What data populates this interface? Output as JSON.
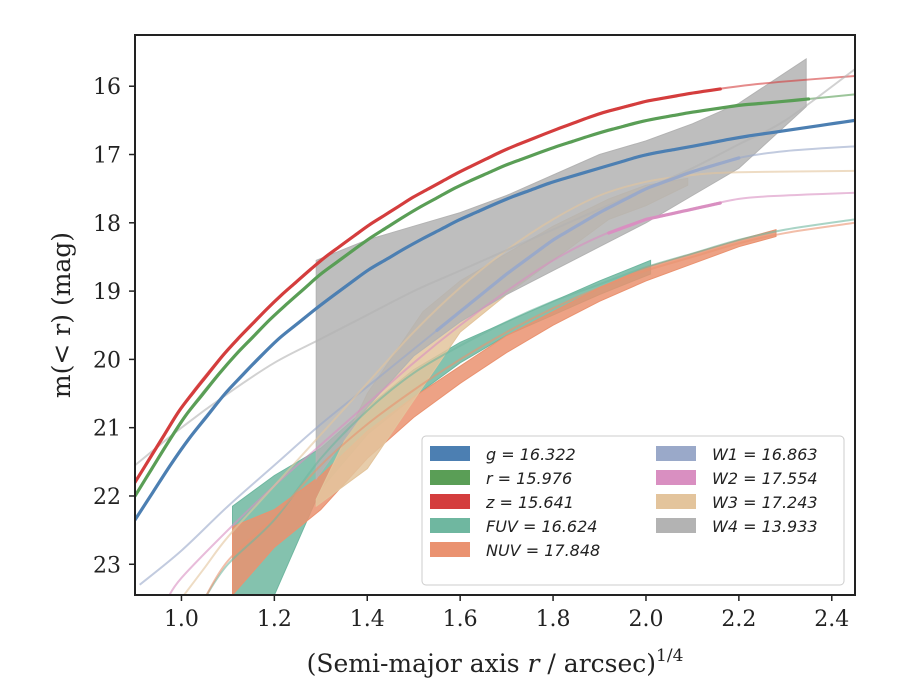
{
  "chart_data": {
    "type": "line",
    "xlabel_main": "(Semi-major axis ",
    "xlabel_var": "r",
    "xlabel_tail": " / arcsec)",
    "xlabel_exp": "1/4",
    "ylabel_main": "m(< r) (mag)",
    "xlim": [
      0.9,
      2.45
    ],
    "ylim": [
      23.45,
      15.25
    ],
    "y_inverted": true,
    "x_ticks": [
      1.0,
      1.2,
      1.4,
      1.6,
      1.8,
      2.0,
      2.2,
      2.4
    ],
    "x_tick_labels": [
      "1.0",
      "1.2",
      "1.4",
      "1.6",
      "1.8",
      "2.0",
      "2.2",
      "2.4"
    ],
    "y_ticks": [
      16,
      17,
      18,
      19,
      20,
      21,
      22,
      23
    ],
    "y_tick_labels": [
      "16",
      "17",
      "18",
      "19",
      "20",
      "21",
      "22",
      "23"
    ],
    "legend_position": "lower-right",
    "series": [
      {
        "name": "g",
        "value": "16.322",
        "legend_label": "g = 16.322",
        "color": "#4c7fb2",
        "model": [
          [
            0.9,
            22.35
          ],
          [
            1.0,
            21.3
          ],
          [
            1.1,
            20.45
          ],
          [
            1.2,
            19.75
          ],
          [
            1.3,
            19.2
          ],
          [
            1.4,
            18.7
          ],
          [
            1.5,
            18.3
          ],
          [
            1.6,
            17.95
          ],
          [
            1.7,
            17.65
          ],
          [
            1.8,
            17.4
          ],
          [
            1.9,
            17.2
          ],
          [
            2.0,
            17.0
          ],
          [
            2.1,
            16.88
          ],
          [
            2.2,
            16.75
          ],
          [
            2.3,
            16.65
          ],
          [
            2.45,
            16.5
          ]
        ],
        "measured": {
          "x_min": 0.9,
          "x_max": 2.45
        }
      },
      {
        "name": "r",
        "value": "15.976",
        "legend_label": "r = 15.976",
        "color": "#5a9e56",
        "model": [
          [
            0.9,
            22.0
          ],
          [
            1.0,
            20.9
          ],
          [
            1.1,
            20.05
          ],
          [
            1.2,
            19.35
          ],
          [
            1.3,
            18.75
          ],
          [
            1.4,
            18.25
          ],
          [
            1.5,
            17.82
          ],
          [
            1.6,
            17.45
          ],
          [
            1.7,
            17.15
          ],
          [
            1.8,
            16.9
          ],
          [
            1.9,
            16.68
          ],
          [
            2.0,
            16.5
          ],
          [
            2.1,
            16.38
          ],
          [
            2.2,
            16.28
          ],
          [
            2.3,
            16.22
          ],
          [
            2.45,
            16.12
          ]
        ],
        "measured": {
          "x_min": 0.9,
          "x_max": 2.35
        }
      },
      {
        "name": "z",
        "value": "15.641",
        "legend_label": "z = 15.641",
        "color": "#d43d3d",
        "model": [
          [
            0.9,
            21.8
          ],
          [
            1.0,
            20.7
          ],
          [
            1.1,
            19.85
          ],
          [
            1.2,
            19.15
          ],
          [
            1.3,
            18.55
          ],
          [
            1.4,
            18.05
          ],
          [
            1.5,
            17.62
          ],
          [
            1.6,
            17.25
          ],
          [
            1.7,
            16.92
          ],
          [
            1.8,
            16.65
          ],
          [
            1.9,
            16.4
          ],
          [
            2.0,
            16.22
          ],
          [
            2.1,
            16.1
          ],
          [
            2.2,
            16.0
          ],
          [
            2.3,
            15.93
          ],
          [
            2.45,
            15.85
          ]
        ],
        "measured": {
          "x_min": 0.9,
          "x_max": 2.16
        }
      },
      {
        "name": "FUV",
        "value": "16.624",
        "legend_label": "FUV = 16.624",
        "color": "#6fb7a0",
        "model": [
          [
            1.05,
            23.5
          ],
          [
            1.1,
            23.0
          ],
          [
            1.2,
            22.35
          ],
          [
            1.3,
            21.45
          ],
          [
            1.4,
            20.75
          ],
          [
            1.5,
            20.2
          ],
          [
            1.6,
            19.8
          ],
          [
            1.7,
            19.45
          ],
          [
            1.8,
            19.15
          ],
          [
            1.9,
            18.9
          ],
          [
            2.0,
            18.65
          ],
          [
            2.1,
            18.45
          ],
          [
            2.2,
            18.25
          ],
          [
            2.3,
            18.1
          ],
          [
            2.45,
            17.95
          ]
        ],
        "band": {
          "x": [
            1.11,
            1.2,
            1.3,
            1.4,
            1.5,
            1.6,
            1.7,
            1.8,
            1.9,
            2.01
          ],
          "lower": [
            22.15,
            21.7,
            21.3,
            20.7,
            20.15,
            19.75,
            19.45,
            19.15,
            18.85,
            18.55
          ],
          "upper": [
            23.45,
            23.45,
            21.9,
            21.1,
            20.55,
            20.05,
            19.65,
            19.35,
            19.05,
            18.75
          ]
        }
      },
      {
        "name": "NUV",
        "value": "17.848",
        "legend_label": "NUV = 17.848",
        "color": "#ea9270",
        "model": [
          [
            1.05,
            23.5
          ],
          [
            1.1,
            22.95
          ],
          [
            1.2,
            22.3
          ],
          [
            1.3,
            21.55
          ],
          [
            1.4,
            20.95
          ],
          [
            1.5,
            20.45
          ],
          [
            1.6,
            20.0
          ],
          [
            1.7,
            19.6
          ],
          [
            1.8,
            19.25
          ],
          [
            1.9,
            18.95
          ],
          [
            2.0,
            18.7
          ],
          [
            2.1,
            18.5
          ],
          [
            2.2,
            18.3
          ],
          [
            2.3,
            18.15
          ],
          [
            2.45,
            18.0
          ]
        ],
        "band": {
          "x": [
            1.11,
            1.2,
            1.3,
            1.4,
            1.5,
            1.6,
            1.7,
            1.8,
            1.9,
            2.0,
            2.1,
            2.2,
            2.28
          ],
          "lower": [
            22.45,
            22.2,
            21.7,
            21.05,
            20.55,
            20.1,
            19.65,
            19.3,
            18.95,
            18.65,
            18.45,
            18.25,
            18.1
          ],
          "upper": [
            23.45,
            22.75,
            22.2,
            21.45,
            20.85,
            20.35,
            19.9,
            19.5,
            19.15,
            18.85,
            18.6,
            18.35,
            18.2
          ]
        }
      },
      {
        "name": "W1",
        "value": "16.863",
        "legend_label": "W1 = 16.863",
        "color": "#9aa9c9",
        "model": [
          [
            0.91,
            23.3
          ],
          [
            1.0,
            22.8
          ],
          [
            1.1,
            22.15
          ],
          [
            1.2,
            21.55
          ],
          [
            1.3,
            20.95
          ],
          [
            1.4,
            20.4
          ],
          [
            1.5,
            19.85
          ],
          [
            1.6,
            19.3
          ],
          [
            1.7,
            18.75
          ],
          [
            1.8,
            18.25
          ],
          [
            1.9,
            17.85
          ],
          [
            2.0,
            17.5
          ],
          [
            2.1,
            17.25
          ],
          [
            2.2,
            17.05
          ],
          [
            2.3,
            16.95
          ],
          [
            2.45,
            16.88
          ]
        ],
        "measured": {
          "x_min": 1.55,
          "x_max": 2.2
        }
      },
      {
        "name": "W2",
        "value": "17.554",
        "legend_label": "W2 = 17.554",
        "color": "#d98fc1",
        "model": [
          [
            0.97,
            23.5
          ],
          [
            1.0,
            23.2
          ],
          [
            1.1,
            22.5
          ],
          [
            1.2,
            21.85
          ],
          [
            1.3,
            21.25
          ],
          [
            1.4,
            20.65
          ],
          [
            1.5,
            20.05
          ],
          [
            1.6,
            19.5
          ],
          [
            1.7,
            19.0
          ],
          [
            1.8,
            18.55
          ],
          [
            1.9,
            18.2
          ],
          [
            2.0,
            17.95
          ],
          [
            2.1,
            17.8
          ],
          [
            2.2,
            17.65
          ],
          [
            2.3,
            17.6
          ],
          [
            2.45,
            17.56
          ]
        ],
        "measured": {
          "x_min": 1.92,
          "x_max": 2.16
        }
      },
      {
        "name": "W3",
        "value": "17.243",
        "legend_label": "W3 = 17.243",
        "color": "#e3c49c",
        "model": [
          [
            1.0,
            23.5
          ],
          [
            1.05,
            23.05
          ],
          [
            1.1,
            22.6
          ],
          [
            1.2,
            21.85
          ],
          [
            1.3,
            21.1
          ],
          [
            1.4,
            20.35
          ],
          [
            1.5,
            19.6
          ],
          [
            1.6,
            18.95
          ],
          [
            1.7,
            18.4
          ],
          [
            1.8,
            17.95
          ],
          [
            1.9,
            17.6
          ],
          [
            2.0,
            17.4
          ],
          [
            2.1,
            17.3
          ],
          [
            2.2,
            17.26
          ],
          [
            2.45,
            17.24
          ]
        ],
        "band": {
          "x": [
            1.29,
            1.4,
            1.52,
            1.6,
            1.7,
            1.8,
            1.92,
            2.0,
            2.09
          ],
          "lower": [
            22.05,
            20.5,
            19.3,
            18.85,
            18.45,
            18.05,
            17.65,
            17.45,
            17.35
          ],
          "upper": [
            22.15,
            21.6,
            20.4,
            19.6,
            19.05,
            18.55,
            17.95,
            17.75,
            17.45
          ]
        }
      },
      {
        "name": "W4",
        "value": "13.933",
        "legend_label": "W4 = 13.933",
        "color": "#b3b3b3",
        "model": [
          [
            0.9,
            21.55
          ],
          [
            1.0,
            21.0
          ],
          [
            1.1,
            20.5
          ],
          [
            1.2,
            20.05
          ],
          [
            1.3,
            19.7
          ],
          [
            1.4,
            19.35
          ],
          [
            1.5,
            19.0
          ],
          [
            1.6,
            18.7
          ],
          [
            1.7,
            18.4
          ],
          [
            1.8,
            18.1
          ],
          [
            1.9,
            17.8
          ],
          [
            2.0,
            17.5
          ],
          [
            2.1,
            17.2
          ],
          [
            2.2,
            16.85
          ],
          [
            2.3,
            16.5
          ],
          [
            2.45,
            15.75
          ]
        ],
        "band": {
          "x": [
            1.29,
            1.4,
            1.5,
            1.6,
            1.7,
            1.8,
            1.9,
            2.0,
            2.1,
            2.2,
            2.345
          ],
          "lower": [
            18.55,
            18.25,
            18.05,
            17.85,
            17.6,
            17.3,
            17.0,
            16.8,
            16.55,
            16.25,
            15.6
          ],
          "upper": [
            21.75,
            20.7,
            19.95,
            19.45,
            19.05,
            18.7,
            18.35,
            18.0,
            17.6,
            17.2,
            16.3
          ]
        }
      }
    ]
  }
}
